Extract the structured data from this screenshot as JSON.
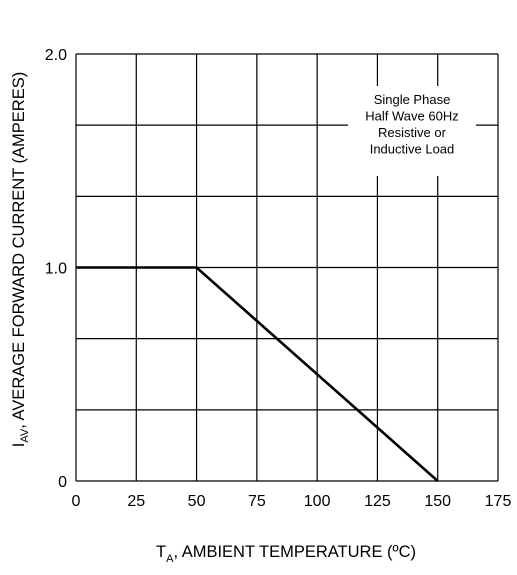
{
  "chart_data": {
    "type": "line",
    "title": "",
    "ylabel": {
      "symbol": "I",
      "subscript": "AV",
      "text": ",  AVERAGE FORWARD CURRENT (AMPERES)"
    },
    "xlabel": {
      "symbol": "T",
      "subscript": "A",
      "text": ",  AMBIENT TEMPERATURE (ºC)"
    },
    "xlim": [
      0,
      175
    ],
    "ylim": [
      0,
      2.0
    ],
    "x_ticks": [
      0,
      25,
      50,
      75,
      100,
      125,
      150,
      175
    ],
    "x_tick_labels": [
      "0",
      "25",
      "50",
      "75",
      "100",
      "125",
      "150",
      "175"
    ],
    "y_ticks": [
      0,
      1.0,
      2.0
    ],
    "y_tick_labels": [
      "0",
      "1.0",
      "2.0"
    ],
    "y_grid_values": [
      0,
      0.333,
      0.667,
      1.0,
      1.333,
      1.667,
      2.0
    ],
    "grid": true,
    "series": [
      {
        "x": [
          0,
          50,
          150
        ],
        "y": [
          1.0,
          1.0,
          0
        ]
      }
    ],
    "annotation": [
      "Single Phase",
      "Half Wave 60Hz",
      "Resistive or",
      "Inductive Load"
    ],
    "colors": {
      "line": "#000000",
      "grid": "#000000",
      "background": "#ffffff"
    }
  }
}
